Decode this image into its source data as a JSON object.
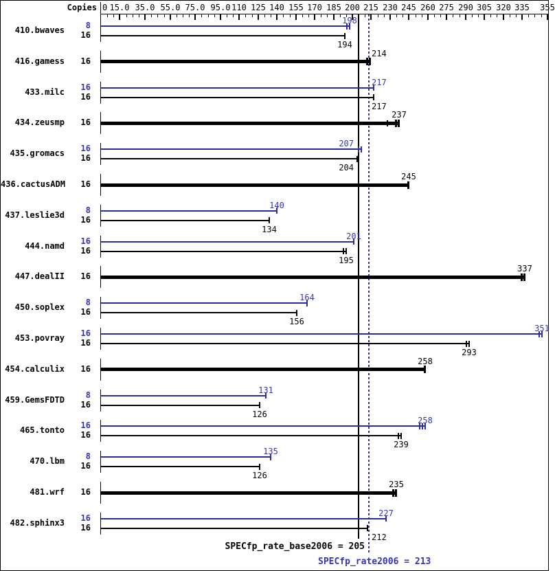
{
  "header": {
    "copies_label": "Copies"
  },
  "summary": {
    "base_text": "SPECfp_rate_base2006 = 205",
    "peak_text": "SPECfp_rate2006 = 213"
  },
  "colors": {
    "peak_bar": "#2b2ba0",
    "base_bar": "#000000",
    "peak_text": "#3434b4",
    "base_text": "#000000",
    "ref_base_line": "#000000",
    "ref_peak_line": "#2d2dc0"
  },
  "chart_data": {
    "type": "bar",
    "orientation": "horizontal",
    "title": "",
    "xlabel": "",
    "xlim": [
      0,
      356
    ],
    "x_axis": {
      "minor_tick_step": 5,
      "ticks": [
        {
          "v": 0,
          "t": "0"
        },
        {
          "v": 15,
          "t": "15.0"
        },
        {
          "v": 35,
          "t": "35.0"
        },
        {
          "v": 55,
          "t": "55.0"
        },
        {
          "v": 75,
          "t": "75.0"
        },
        {
          "v": 95,
          "t": "95.0"
        },
        {
          "v": 110,
          "t": "110"
        },
        {
          "v": 125,
          "t": "125"
        },
        {
          "v": 140,
          "t": "140"
        },
        {
          "v": 155,
          "t": "155"
        },
        {
          "v": 170,
          "t": "170"
        },
        {
          "v": 185,
          "t": "185"
        },
        {
          "v": 200,
          "t": "200"
        },
        {
          "v": 215,
          "t": "215"
        },
        {
          "v": 230,
          "t": "230"
        },
        {
          "v": 245,
          "t": "245"
        },
        {
          "v": 260,
          "t": "260"
        },
        {
          "v": 275,
          "t": "275"
        },
        {
          "v": 290,
          "t": "290"
        },
        {
          "v": 305,
          "t": "305"
        },
        {
          "v": 320,
          "t": "320"
        },
        {
          "v": 335,
          "t": "335"
        },
        {
          "v": 355,
          "t": "355"
        }
      ]
    },
    "reference_lines": [
      {
        "name": "SPECfp_rate_base2006",
        "value": 205,
        "style": "solid",
        "series": "base"
      },
      {
        "name": "SPECfp_rate2006",
        "value": 213,
        "style": "dotted",
        "series": "peak"
      }
    ],
    "groups": [
      {
        "benchmark": "410.bwaves",
        "bars": [
          {
            "series": "peak",
            "copies": "8",
            "value": 198,
            "end_marks": 2
          },
          {
            "series": "base",
            "copies": "16",
            "value": 194,
            "end_marks": 1
          }
        ]
      },
      {
        "benchmark": "416.gamess",
        "bars": [
          {
            "series": "base",
            "copies": "16",
            "value": 214,
            "thick": true,
            "end_marks": 2
          }
        ]
      },
      {
        "benchmark": "433.milc",
        "bars": [
          {
            "series": "peak",
            "copies": "16",
            "value": 217,
            "end_marks": 1
          },
          {
            "series": "base",
            "copies": "16",
            "value": 217,
            "end_marks": 1
          }
        ]
      },
      {
        "benchmark": "434.zeusmp",
        "bars": [
          {
            "series": "base",
            "copies": "16",
            "value": 237,
            "thick": true,
            "end_marks": 2,
            "extra_ticks": [
              228
            ]
          }
        ]
      },
      {
        "benchmark": "435.gromacs",
        "bars": [
          {
            "series": "peak",
            "copies": "16",
            "value": 207,
            "end_marks": 2
          },
          {
            "series": "base",
            "copies": "16",
            "value": 204,
            "end_marks": 1
          }
        ]
      },
      {
        "benchmark": "436.cactusADM",
        "bars": [
          {
            "series": "base",
            "copies": "16",
            "value": 245,
            "thick": true,
            "end_marks": 1
          }
        ]
      },
      {
        "benchmark": "437.leslie3d",
        "bars": [
          {
            "series": "peak",
            "copies": "8",
            "value": 140,
            "end_marks": 1
          },
          {
            "series": "base",
            "copies": "16",
            "value": 134,
            "end_marks": 1
          }
        ]
      },
      {
        "benchmark": "444.namd",
        "bars": [
          {
            "series": "peak",
            "copies": "16",
            "value": 201,
            "end_marks": 1
          },
          {
            "series": "base",
            "copies": "16",
            "value": 195,
            "end_marks": 2
          }
        ]
      },
      {
        "benchmark": "447.dealII",
        "bars": [
          {
            "series": "base",
            "copies": "16",
            "value": 337,
            "thick": true,
            "end_marks": 2
          }
        ]
      },
      {
        "benchmark": "450.soplex",
        "bars": [
          {
            "series": "peak",
            "copies": "8",
            "value": 164,
            "end_marks": 1
          },
          {
            "series": "base",
            "copies": "16",
            "value": 156,
            "end_marks": 1
          }
        ]
      },
      {
        "benchmark": "453.povray",
        "bars": [
          {
            "series": "peak",
            "copies": "16",
            "value": 351,
            "end_marks": 2
          },
          {
            "series": "base",
            "copies": "16",
            "value": 293,
            "end_marks": 2
          }
        ]
      },
      {
        "benchmark": "454.calculix",
        "bars": [
          {
            "series": "base",
            "copies": "16",
            "value": 258,
            "thick": true,
            "end_marks": 1
          }
        ]
      },
      {
        "benchmark": "459.GemsFDTD",
        "bars": [
          {
            "series": "peak",
            "copies": "8",
            "value": 131,
            "end_marks": 1
          },
          {
            "series": "base",
            "copies": "16",
            "value": 126,
            "end_marks": 1
          }
        ]
      },
      {
        "benchmark": "465.tonto",
        "bars": [
          {
            "series": "peak",
            "copies": "16",
            "value": 258,
            "end_marks": 3
          },
          {
            "series": "base",
            "copies": "16",
            "value": 239,
            "end_marks": 2
          }
        ]
      },
      {
        "benchmark": "470.lbm",
        "bars": [
          {
            "series": "peak",
            "copies": "8",
            "value": 135,
            "end_marks": 1
          },
          {
            "series": "base",
            "copies": "16",
            "value": 126,
            "end_marks": 1
          }
        ]
      },
      {
        "benchmark": "481.wrf",
        "bars": [
          {
            "series": "base",
            "copies": "16",
            "value": 235,
            "thick": true,
            "end_marks": 2
          }
        ]
      },
      {
        "benchmark": "482.sphinx3",
        "bars": [
          {
            "series": "peak",
            "copies": "16",
            "value": 227,
            "end_marks": 1
          },
          {
            "series": "base",
            "copies": "16",
            "value": 212,
            "end_marks": 1
          }
        ]
      }
    ]
  }
}
